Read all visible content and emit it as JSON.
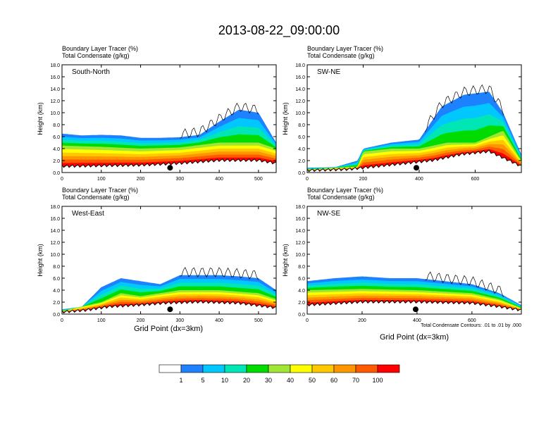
{
  "figure_title": "2013-08-22_09:00:00",
  "panel_header_line1": "Boundary Layer Tracer   (%)",
  "panel_header_line2": "Total Condensate   (g/kg)",
  "ylabel": "Height (km)",
  "xlabel": "Grid Point (dx=3km)",
  "contour_note": "Total Condensate Contours: .01 to .01 by .000",
  "colorbar": {
    "colors": [
      "#ffffff",
      "#1e82ff",
      "#00c8ff",
      "#00e6b4",
      "#00dc00",
      "#a0e632",
      "#ffff00",
      "#ffc800",
      "#ff9600",
      "#ff5a00",
      "#ff0000"
    ],
    "labels": [
      "1",
      "5",
      "10",
      "20",
      "30",
      "40",
      "50",
      "60",
      "70",
      "100"
    ]
  },
  "chart_data": [
    {
      "type": "heatmap",
      "title": "South-North",
      "xlim": [
        0,
        545
      ],
      "ylim": [
        0,
        18
      ],
      "xticks": [
        0,
        100,
        200,
        300,
        400,
        500
      ],
      "yticks": [
        "0.0",
        "2.0",
        "4.0",
        "6.0",
        "8.0",
        "10.0",
        "12.0",
        "14.0",
        "16.0",
        "18.0"
      ],
      "marker_x": 275,
      "tracer_top_km": [
        [
          0,
          6.5
        ],
        [
          50,
          6.2
        ],
        [
          100,
          6.3
        ],
        [
          150,
          6.2
        ],
        [
          200,
          5.8
        ],
        [
          250,
          5.8
        ],
        [
          300,
          5.9
        ],
        [
          350,
          6.3
        ],
        [
          400,
          8.5
        ],
        [
          450,
          10.5
        ],
        [
          500,
          10.0
        ],
        [
          545,
          5.0
        ]
      ],
      "tracer_core_top_km": [
        [
          0,
          4.5
        ],
        [
          100,
          4.3
        ],
        [
          200,
          4.0
        ],
        [
          300,
          4.2
        ],
        [
          400,
          5.0
        ],
        [
          500,
          5.0
        ],
        [
          545,
          4.0
        ]
      ],
      "terrain_km": [
        [
          0,
          1.0
        ],
        [
          100,
          1.1
        ],
        [
          200,
          1.2
        ],
        [
          300,
          1.5
        ],
        [
          400,
          2.0
        ],
        [
          500,
          2.0
        ],
        [
          545,
          1.5
        ]
      ]
    },
    {
      "type": "heatmap",
      "title": "SW-NE",
      "xlim": [
        0,
        765
      ],
      "ylim": [
        0,
        18
      ],
      "xticks": [
        0,
        200,
        400,
        600
      ],
      "yticks": [
        "0.0",
        "2.0",
        "4.0",
        "6.0",
        "8.0",
        "10.0",
        "12.0",
        "14.0",
        "16.0",
        "18.0"
      ],
      "marker_x": 390,
      "tracer_top_km": [
        [
          0,
          0.8
        ],
        [
          100,
          0.9
        ],
        [
          180,
          2.0
        ],
        [
          200,
          4.0
        ],
        [
          300,
          5.0
        ],
        [
          400,
          5.5
        ],
        [
          480,
          11.0
        ],
        [
          560,
          13.0
        ],
        [
          650,
          13.5
        ],
        [
          700,
          10.0
        ],
        [
          765,
          3.0
        ]
      ],
      "tracer_core_top_km": [
        [
          0,
          0.5
        ],
        [
          180,
          1.0
        ],
        [
          200,
          3.5
        ],
        [
          300,
          4.0
        ],
        [
          400,
          4.0
        ],
        [
          500,
          5.0
        ],
        [
          600,
          5.0
        ],
        [
          700,
          7.0
        ],
        [
          765,
          2.0
        ]
      ],
      "terrain_km": [
        [
          0,
          0.3
        ],
        [
          150,
          0.5
        ],
        [
          250,
          1.0
        ],
        [
          350,
          1.5
        ],
        [
          450,
          2.0
        ],
        [
          550,
          3.0
        ],
        [
          650,
          3.5
        ],
        [
          765,
          1.0
        ]
      ]
    },
    {
      "type": "heatmap",
      "title": "West-East",
      "xlim": [
        0,
        545
      ],
      "ylim": [
        0,
        18
      ],
      "xticks": [
        0,
        100,
        200,
        300,
        400,
        500
      ],
      "yticks": [
        "0.0",
        "2.0",
        "4.0",
        "6.0",
        "8.0",
        "10.0",
        "12.0",
        "14.0",
        "16.0",
        "18.0"
      ],
      "marker_x": 275,
      "tracer_top_km": [
        [
          0,
          0.8
        ],
        [
          50,
          1.2
        ],
        [
          100,
          4.5
        ],
        [
          150,
          6.0
        ],
        [
          200,
          5.5
        ],
        [
          250,
          5.0
        ],
        [
          300,
          6.5
        ],
        [
          350,
          6.5
        ],
        [
          400,
          6.5
        ],
        [
          450,
          6.3
        ],
        [
          500,
          6.0
        ],
        [
          545,
          4.0
        ]
      ],
      "tracer_core_top_km": [
        [
          0,
          0.5
        ],
        [
          100,
          2.0
        ],
        [
          150,
          3.5
        ],
        [
          200,
          3.0
        ],
        [
          250,
          3.5
        ],
        [
          300,
          4.0
        ],
        [
          400,
          4.0
        ],
        [
          500,
          3.5
        ],
        [
          545,
          2.5
        ]
      ],
      "terrain_km": [
        [
          0,
          0.3
        ],
        [
          60,
          0.6
        ],
        [
          120,
          1.2
        ],
        [
          200,
          1.5
        ],
        [
          260,
          1.8
        ],
        [
          350,
          2.0
        ],
        [
          450,
          1.8
        ],
        [
          545,
          1.0
        ]
      ]
    },
    {
      "type": "heatmap",
      "title": "NW-SE",
      "xlim": [
        0,
        780
      ],
      "ylim": [
        0,
        18
      ],
      "xticks": [
        0,
        200,
        400,
        600
      ],
      "yticks": [
        "0.0",
        "2.0",
        "4.0",
        "6.0",
        "8.0",
        "10.0",
        "12.0",
        "14.0",
        "16.0",
        "18.0"
      ],
      "marker_x": 395,
      "tracer_top_km": [
        [
          0,
          5.5
        ],
        [
          100,
          6.0
        ],
        [
          200,
          6.3
        ],
        [
          300,
          6.0
        ],
        [
          400,
          6.0
        ],
        [
          500,
          5.5
        ],
        [
          600,
          5.0
        ],
        [
          700,
          3.5
        ],
        [
          780,
          1.5
        ]
      ],
      "tracer_core_top_km": [
        [
          0,
          4.0
        ],
        [
          200,
          4.2
        ],
        [
          400,
          4.0
        ],
        [
          600,
          3.5
        ],
        [
          700,
          2.5
        ],
        [
          780,
          1.0
        ]
      ],
      "terrain_km": [
        [
          0,
          1.5
        ],
        [
          200,
          2.0
        ],
        [
          400,
          2.0
        ],
        [
          600,
          1.8
        ],
        [
          700,
          1.2
        ],
        [
          780,
          0.6
        ]
      ]
    }
  ]
}
